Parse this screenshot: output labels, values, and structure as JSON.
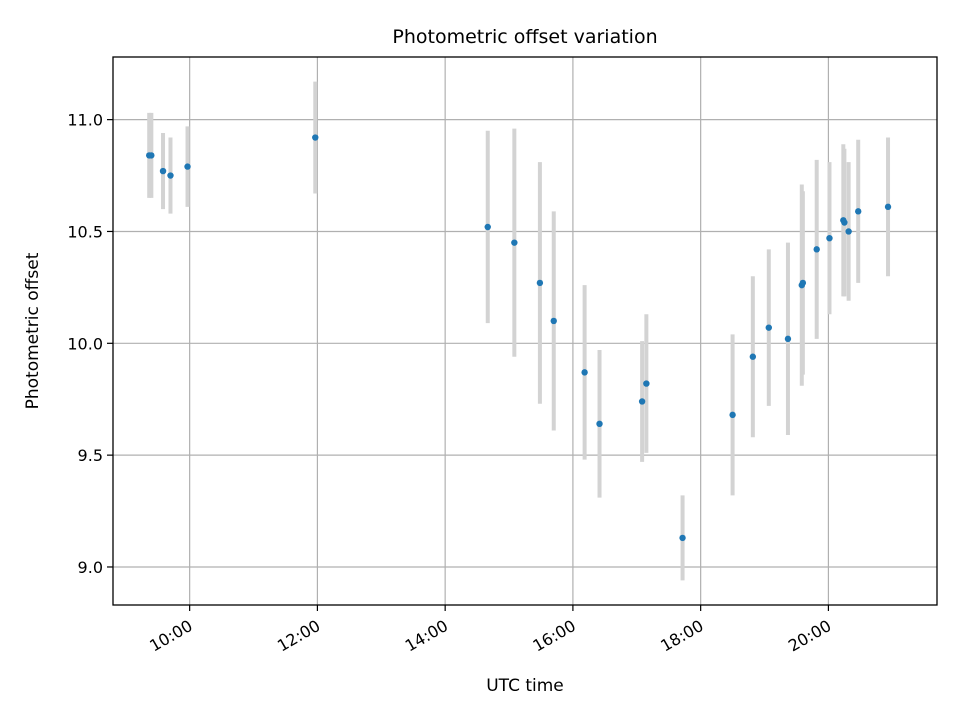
{
  "chart_data": {
    "type": "scatter",
    "title": "Photometric offset variation",
    "xlabel": "UTC time",
    "ylabel": "Photometric offset",
    "x_unit": "time of day (HH:MM, UTC)",
    "xlim": [
      "08:48",
      "21:42"
    ],
    "ylim": [
      8.83,
      11.28
    ],
    "x_ticks": [
      "10:00",
      "12:00",
      "14:00",
      "16:00",
      "18:00",
      "20:00"
    ],
    "y_ticks": [
      9.0,
      9.5,
      10.0,
      10.5,
      11.0
    ],
    "y_tick_labels": [
      "9.0",
      "9.5",
      "10.0",
      "10.5",
      "11.0"
    ],
    "x_tick_rotation_deg": 30,
    "grid": true,
    "legend": "none",
    "colors": {
      "points": "#1f77b4",
      "error_bars": "#d3d3d3",
      "grid": "#b0b0b0"
    },
    "series": [
      {
        "points": [
          {
            "x": "09:22",
            "y": 10.84,
            "err": 0.19
          },
          {
            "x": "09:24",
            "y": 10.84,
            "err": 0.19
          },
          {
            "x": "09:35",
            "y": 10.77,
            "err": 0.17
          },
          {
            "x": "09:42",
            "y": 10.75,
            "err": 0.17
          },
          {
            "x": "09:58",
            "y": 10.79,
            "err": 0.18
          },
          {
            "x": "11:58",
            "y": 10.92,
            "err": 0.25
          },
          {
            "x": "14:40",
            "y": 10.52,
            "err": 0.43
          },
          {
            "x": "15:05",
            "y": 10.45,
            "err": 0.51
          },
          {
            "x": "15:29",
            "y": 10.27,
            "err": 0.54
          },
          {
            "x": "15:42",
            "y": 10.1,
            "err": 0.49
          },
          {
            "x": "16:11",
            "y": 9.87,
            "err": 0.39
          },
          {
            "x": "16:25",
            "y": 9.64,
            "err": 0.33
          },
          {
            "x": "17:05",
            "y": 9.74,
            "err": 0.27
          },
          {
            "x": "17:09",
            "y": 9.82,
            "err": 0.31
          },
          {
            "x": "17:43",
            "y": 9.13,
            "err": 0.19
          },
          {
            "x": "18:30",
            "y": 9.68,
            "err": 0.36
          },
          {
            "x": "18:49",
            "y": 9.94,
            "err": 0.36
          },
          {
            "x": "19:04",
            "y": 10.07,
            "err": 0.35
          },
          {
            "x": "19:22",
            "y": 10.02,
            "err": 0.43
          },
          {
            "x": "19:35",
            "y": 10.26,
            "err": 0.45
          },
          {
            "x": "19:36",
            "y": 10.27,
            "err": 0.41
          },
          {
            "x": "19:49",
            "y": 10.42,
            "err": 0.4
          },
          {
            "x": "20:01",
            "y": 10.47,
            "err": 0.34
          },
          {
            "x": "20:14",
            "y": 10.55,
            "err": 0.34
          },
          {
            "x": "20:15",
            "y": 10.54,
            "err": 0.33
          },
          {
            "x": "20:19",
            "y": 10.5,
            "err": 0.31
          },
          {
            "x": "20:28",
            "y": 10.59,
            "err": 0.32
          },
          {
            "x": "20:56",
            "y": 10.61,
            "err": 0.31
          }
        ]
      }
    ]
  }
}
